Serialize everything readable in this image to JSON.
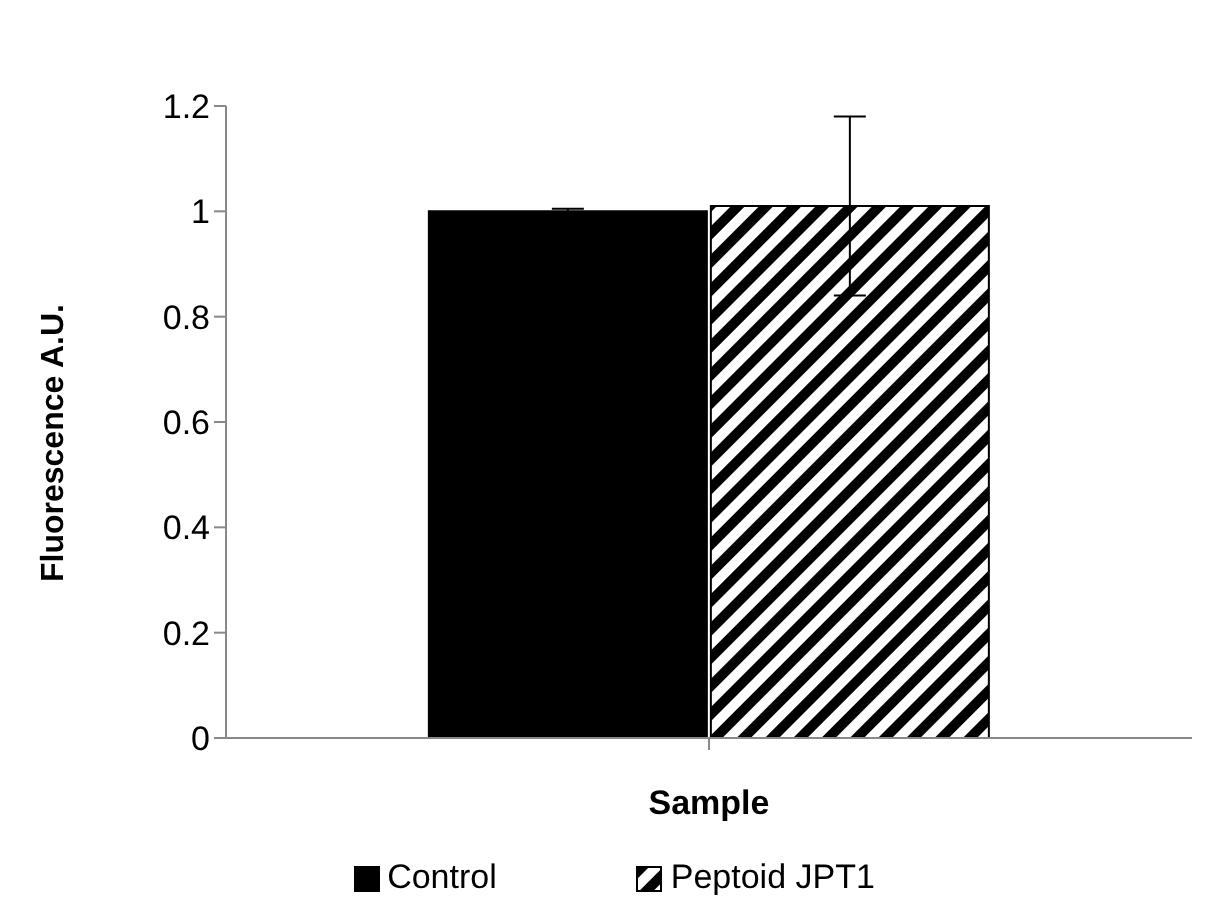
{
  "chart_data": {
    "type": "bar",
    "xlabel": "Sample",
    "ylabel": "Fluorescence A.U.",
    "categories": [
      null
    ],
    "series": [
      {
        "name": "Control",
        "color": "#000000",
        "values": [
          1.0
        ],
        "errors": [
          0.005
        ]
      },
      {
        "name": "Peptoid JPT1",
        "color": "#000000",
        "values": [
          1.01
        ],
        "errors": [
          0.17
        ]
      }
    ],
    "ylim": [
      0,
      1.2
    ],
    "yticks": [
      0,
      0.2,
      0.4,
      0.6,
      0.8,
      1,
      1.2
    ],
    "grid": false,
    "legend": "bottom"
  }
}
